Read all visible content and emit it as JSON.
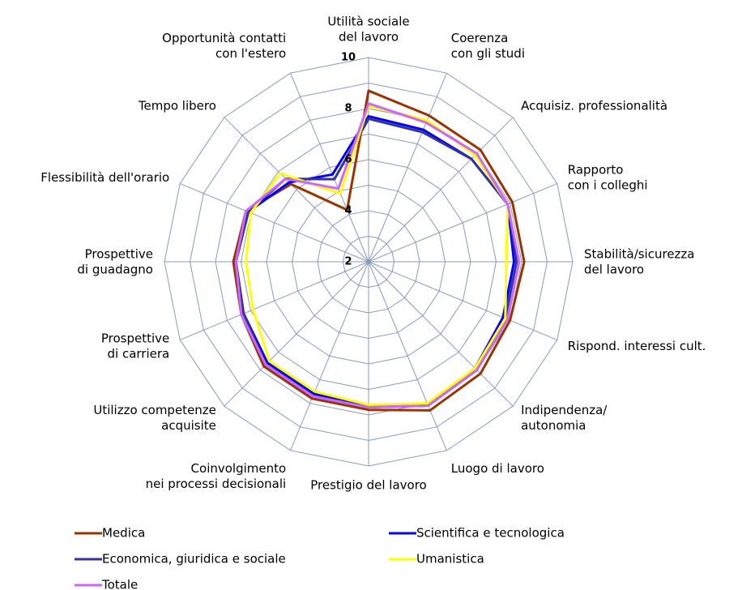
{
  "chart_data": {
    "type": "radar",
    "categories": [
      [
        "Utilità sociale",
        "del lavoro"
      ],
      [
        "Coerenza",
        "con gli studi"
      ],
      [
        "Acquisiz. professionalità"
      ],
      [
        "Rapporto",
        "con i colleghi"
      ],
      [
        "Stabilità/sicurezza",
        "del lavoro"
      ],
      [
        "Rispond. interessi cult."
      ],
      [
        "Indipendenza/",
        "autonomia"
      ],
      [
        "Luogo di lavoro"
      ],
      [
        "Prestigio del lavoro"
      ],
      [
        "Coinvolgimento",
        "nei processi decisionali"
      ],
      [
        "Utilizzo competenze",
        "acquisite"
      ],
      [
        "Prospettive",
        "di carriera"
      ],
      [
        "Prospettive",
        "di guadagno"
      ],
      [
        "Flessibilità dell'orario"
      ],
      [
        "Tempo libero"
      ],
      [
        "Opportunità contatti",
        "con l'estero"
      ]
    ],
    "series": [
      {
        "name": "Medica",
        "color": "#993300",
        "values": [
          8.7,
          8.2,
          8.2,
          8.1,
          8.1,
          8.0,
          8.2,
          8.3,
          7.8,
          7.8,
          7.8,
          7.4,
          7.3,
          7.2,
          6.3,
          4.2
        ]
      },
      {
        "name": "Scientifica e tecnologica",
        "color": "#0000ff",
        "values": [
          7.7,
          7.6,
          7.7,
          7.9,
          7.7,
          7.7,
          7.9,
          8.1,
          7.7,
          7.6,
          7.6,
          7.3,
          7.2,
          7.1,
          6.4,
          5.7
        ]
      },
      {
        "name": "Economica, giuridica e sociale",
        "color": "#333399",
        "values": [
          7.6,
          7.5,
          7.7,
          7.9,
          7.8,
          7.8,
          8.0,
          8.1,
          7.7,
          7.7,
          7.7,
          7.3,
          7.2,
          7.1,
          6.6,
          5.5
        ]
      },
      {
        "name": "Umanistica",
        "color": "#ffff00",
        "values": [
          8.1,
          8.0,
          7.9,
          7.9,
          7.4,
          7.8,
          7.9,
          8.0,
          7.6,
          7.5,
          7.5,
          6.9,
          6.8,
          7.0,
          6.9,
          4.9
        ]
      },
      {
        "name": "Totale",
        "color": "#cc66ff",
        "values": [
          8.2,
          7.9,
          8.0,
          7.9,
          7.9,
          7.9,
          8.0,
          8.1,
          7.7,
          7.7,
          7.7,
          7.4,
          7.2,
          7.2,
          6.6,
          5.1
        ]
      }
    ],
    "ylim": [
      2,
      10
    ],
    "yticks": [
      2,
      4,
      6,
      8,
      10
    ],
    "minor_ticks": [
      3,
      5,
      7,
      9
    ],
    "grid": true,
    "legend": "bottom"
  }
}
